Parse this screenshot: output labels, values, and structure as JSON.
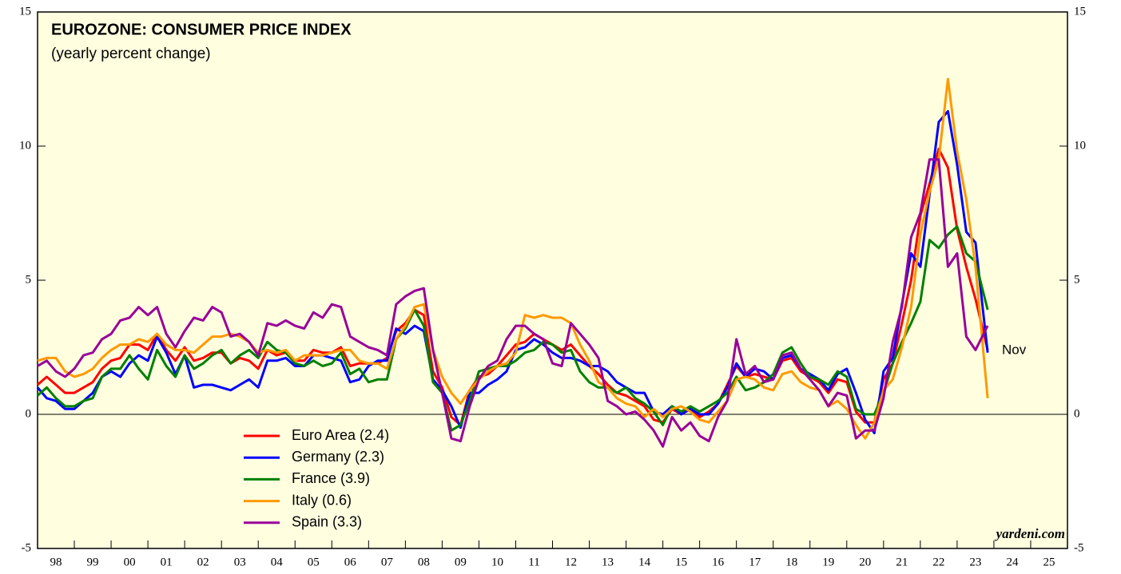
{
  "chart_data": {
    "type": "line",
    "title": "EUROZONE: CONSUMER PRICE INDEX",
    "subtitle": "(yearly percent change)",
    "annotation": "Nov",
    "source": "yardeni.com",
    "xlim": [
      1998,
      2026
    ],
    "ylim": [
      -5,
      15
    ],
    "yticks": [
      -5,
      0,
      5,
      10,
      15
    ],
    "xticks": [
      {
        "value": 1998,
        "label": "98"
      },
      {
        "value": 1999,
        "label": "99"
      },
      {
        "value": 2000,
        "label": "00"
      },
      {
        "value": 2001,
        "label": "01"
      },
      {
        "value": 2002,
        "label": "02"
      },
      {
        "value": 2003,
        "label": "03"
      },
      {
        "value": 2004,
        "label": "04"
      },
      {
        "value": 2005,
        "label": "05"
      },
      {
        "value": 2006,
        "label": "06"
      },
      {
        "value": 2007,
        "label": "07"
      },
      {
        "value": 2008,
        "label": "08"
      },
      {
        "value": 2009,
        "label": "09"
      },
      {
        "value": 2010,
        "label": "10"
      },
      {
        "value": 2011,
        "label": "11"
      },
      {
        "value": 2012,
        "label": "12"
      },
      {
        "value": 2013,
        "label": "13"
      },
      {
        "value": 2014,
        "label": "14"
      },
      {
        "value": 2015,
        "label": "15"
      },
      {
        "value": 2016,
        "label": "16"
      },
      {
        "value": 2017,
        "label": "17"
      },
      {
        "value": 2018,
        "label": "18"
      },
      {
        "value": 2019,
        "label": "19"
      },
      {
        "value": 2020,
        "label": "20"
      },
      {
        "value": 2021,
        "label": "21"
      },
      {
        "value": 2022,
        "label": "22"
      },
      {
        "value": 2023,
        "label": "23"
      },
      {
        "value": 2024,
        "label": "24"
      },
      {
        "value": 2025,
        "label": "25"
      }
    ],
    "x": [
      1998,
      1998.25,
      1998.5,
      1998.75,
      1999,
      1999.25,
      1999.5,
      1999.75,
      2000,
      2000.25,
      2000.5,
      2000.75,
      2001,
      2001.25,
      2001.5,
      2001.75,
      2002,
      2002.25,
      2002.5,
      2002.75,
      2003,
      2003.25,
      2003.5,
      2003.75,
      2004,
      2004.25,
      2004.5,
      2004.75,
      2005,
      2005.25,
      2005.5,
      2005.75,
      2006,
      2006.25,
      2006.5,
      2006.75,
      2007,
      2007.25,
      2007.5,
      2007.75,
      2008,
      2008.25,
      2008.5,
      2008.75,
      2009,
      2009.25,
      2009.5,
      2009.75,
      2010,
      2010.25,
      2010.5,
      2010.75,
      2011,
      2011.25,
      2011.5,
      2011.75,
      2012,
      2012.25,
      2012.5,
      2012.75,
      2013,
      2013.25,
      2013.5,
      2013.75,
      2014,
      2014.25,
      2014.5,
      2014.75,
      2015,
      2015.25,
      2015.5,
      2015.75,
      2016,
      2016.25,
      2016.5,
      2016.75,
      2017,
      2017.25,
      2017.5,
      2017.75,
      2018,
      2018.25,
      2018.5,
      2018.75,
      2019,
      2019.25,
      2019.5,
      2019.75,
      2020,
      2020.25,
      2020.5,
      2020.75,
      2021,
      2021.25,
      2021.5,
      2021.75,
      2022,
      2022.25,
      2022.5,
      2022.75,
      2023,
      2023.25,
      2023.5,
      2023.83
    ],
    "series": [
      {
        "name": "Euro Area (2.4)",
        "color": "#ff0000",
        "values": [
          1.1,
          1.4,
          1.1,
          0.8,
          0.8,
          1.0,
          1.2,
          1.7,
          2.0,
          2.1,
          2.6,
          2.6,
          2.4,
          3.0,
          2.4,
          2.0,
          2.5,
          2.0,
          2.1,
          2.3,
          2.3,
          1.9,
          2.1,
          2.0,
          1.7,
          2.4,
          2.2,
          2.3,
          2.0,
          2.0,
          2.4,
          2.3,
          2.3,
          2.5,
          1.8,
          1.9,
          1.9,
          1.9,
          2.1,
          3.1,
          3.4,
          3.9,
          3.7,
          1.6,
          1.0,
          -0.1,
          -0.4,
          0.9,
          1.4,
          1.5,
          1.8,
          2.2,
          2.6,
          2.7,
          3.0,
          2.8,
          2.6,
          2.4,
          2.6,
          2.2,
          1.8,
          1.5,
          1.1,
          0.8,
          0.7,
          0.5,
          0.3,
          -0.2,
          -0.3,
          0.2,
          0.0,
          0.2,
          -0.1,
          0.1,
          0.4,
          1.1,
          1.8,
          1.4,
          1.5,
          1.4,
          1.3,
          2.0,
          2.1,
          1.6,
          1.4,
          1.2,
          0.8,
          1.3,
          1.2,
          0.1,
          -0.3,
          -0.3,
          1.3,
          1.9,
          3.4,
          5.0,
          7.4,
          8.6,
          9.9,
          9.2,
          6.9,
          5.5,
          4.3,
          2.4
        ]
      },
      {
        "name": "Germany (2.3)",
        "color": "#0000ff",
        "values": [
          1.0,
          0.6,
          0.5,
          0.2,
          0.2,
          0.5,
          0.8,
          1.4,
          1.6,
          1.4,
          1.9,
          2.2,
          2.0,
          2.9,
          2.3,
          1.5,
          2.2,
          1.0,
          1.1,
          1.1,
          1.0,
          0.9,
          1.1,
          1.3,
          1.0,
          2.0,
          2.0,
          2.1,
          1.8,
          1.8,
          2.2,
          2.2,
          2.1,
          2.0,
          1.2,
          1.3,
          1.8,
          2.0,
          2.0,
          3.2,
          3.0,
          3.3,
          3.1,
          1.3,
          0.9,
          0.3,
          -0.5,
          0.8,
          0.8,
          1.1,
          1.3,
          1.6,
          2.4,
          2.5,
          2.8,
          2.6,
          2.3,
          2.1,
          2.1,
          2.0,
          1.8,
          1.8,
          1.6,
          1.2,
          1.0,
          0.8,
          0.8,
          0.1,
          0.0,
          0.3,
          0.0,
          0.2,
          0.0,
          0.0,
          0.4,
          1.0,
          1.9,
          1.4,
          1.7,
          1.6,
          1.3,
          2.1,
          2.2,
          1.7,
          1.5,
          1.3,
          0.9,
          1.5,
          1.7,
          0.8,
          -0.2,
          -0.7,
          1.6,
          2.1,
          4.1,
          6.0,
          5.5,
          8.2,
          10.9,
          11.3,
          9.3,
          6.8,
          6.4,
          2.3
        ]
      },
      {
        "name": "France (3.9)",
        "color": "#008000",
        "values": [
          0.7,
          1.0,
          0.6,
          0.3,
          0.3,
          0.5,
          0.6,
          1.4,
          1.7,
          1.7,
          2.2,
          1.7,
          1.3,
          2.4,
          1.8,
          1.4,
          2.2,
          1.7,
          1.9,
          2.2,
          2.4,
          1.9,
          2.2,
          2.4,
          2.1,
          2.7,
          2.4,
          2.3,
          1.9,
          1.8,
          2.0,
          1.8,
          1.9,
          2.3,
          1.5,
          1.7,
          1.2,
          1.3,
          1.3,
          2.8,
          3.2,
          3.9,
          3.3,
          1.2,
          0.8,
          -0.6,
          -0.4,
          0.5,
          1.6,
          1.7,
          1.8,
          1.8,
          2.0,
          2.3,
          2.4,
          2.7,
          2.6,
          2.3,
          2.4,
          1.6,
          1.2,
          1.0,
          1.0,
          0.8,
          1.0,
          0.6,
          0.4,
          0.1,
          -0.4,
          0.3,
          0.1,
          0.3,
          0.1,
          0.3,
          0.5,
          0.8,
          1.4,
          0.9,
          1.0,
          1.2,
          1.5,
          2.3,
          2.5,
          1.9,
          1.4,
          1.3,
          1.1,
          1.6,
          1.4,
          0.2,
          0.0,
          0.0,
          0.8,
          1.9,
          2.7,
          3.4,
          4.2,
          6.5,
          6.2,
          6.7,
          7.0,
          6.0,
          5.7,
          3.9
        ]
      },
      {
        "name": "Italy (0.6)",
        "color": "#ff9900",
        "values": [
          2.0,
          2.1,
          2.1,
          1.6,
          1.4,
          1.5,
          1.7,
          2.1,
          2.4,
          2.6,
          2.6,
          2.8,
          2.7,
          3.0,
          2.6,
          2.4,
          2.4,
          2.3,
          2.6,
          2.9,
          2.9,
          3.0,
          2.9,
          2.7,
          2.3,
          2.4,
          2.3,
          2.4,
          2.0,
          2.2,
          2.2,
          2.2,
          2.3,
          2.4,
          2.4,
          2.0,
          1.9,
          1.9,
          1.7,
          2.8,
          3.3,
          4.0,
          4.1,
          2.4,
          1.4,
          0.8,
          0.4,
          0.9,
          1.3,
          1.6,
          1.8,
          1.9,
          2.3,
          3.7,
          3.6,
          3.7,
          3.6,
          3.6,
          3.4,
          2.6,
          2.0,
          1.2,
          1.0,
          0.6,
          0.4,
          0.3,
          -0.1,
          0.2,
          -0.1,
          0.2,
          0.3,
          0.1,
          -0.2,
          -0.3,
          0.1,
          0.5,
          1.3,
          1.4,
          1.3,
          1.0,
          0.9,
          1.5,
          1.6,
          1.2,
          1.0,
          0.9,
          0.3,
          0.5,
          0.2,
          -0.4,
          -0.9,
          -0.3,
          0.9,
          1.3,
          2.5,
          4.0,
          6.7,
          8.3,
          9.5,
          12.5,
          9.8,
          8.0,
          5.5,
          0.6
        ]
      },
      {
        "name": "Spain (3.3)",
        "color": "#990099",
        "values": [
          1.8,
          2.0,
          1.6,
          1.4,
          1.7,
          2.2,
          2.3,
          2.8,
          3.0,
          3.5,
          3.6,
          4.0,
          3.7,
          4.0,
          3.0,
          2.5,
          3.1,
          3.6,
          3.5,
          4.0,
          3.8,
          2.9,
          3.0,
          2.7,
          2.2,
          3.4,
          3.3,
          3.5,
          3.3,
          3.2,
          3.8,
          3.6,
          4.1,
          4.0,
          2.9,
          2.7,
          2.5,
          2.4,
          2.2,
          4.1,
          4.4,
          4.6,
          4.7,
          2.4,
          0.8,
          -0.9,
          -1.0,
          0.3,
          1.3,
          1.8,
          2.0,
          2.8,
          3.3,
          3.3,
          3.0,
          2.8,
          1.9,
          1.8,
          3.4,
          3.0,
          2.6,
          2.1,
          0.5,
          0.3,
          0.0,
          0.1,
          -0.2,
          -0.6,
          -1.2,
          -0.1,
          -0.6,
          -0.3,
          -0.8,
          -1.0,
          -0.1,
          0.5,
          2.8,
          1.5,
          1.8,
          1.2,
          1.3,
          2.2,
          2.3,
          1.7,
          1.3,
          0.9,
          0.3,
          0.8,
          0.7,
          -0.9,
          -0.6,
          -0.6,
          0.6,
          2.7,
          4.0,
          6.6,
          7.5,
          9.5,
          9.5,
          5.5,
          6.0,
          2.9,
          2.4,
          3.3
        ]
      }
    ]
  }
}
